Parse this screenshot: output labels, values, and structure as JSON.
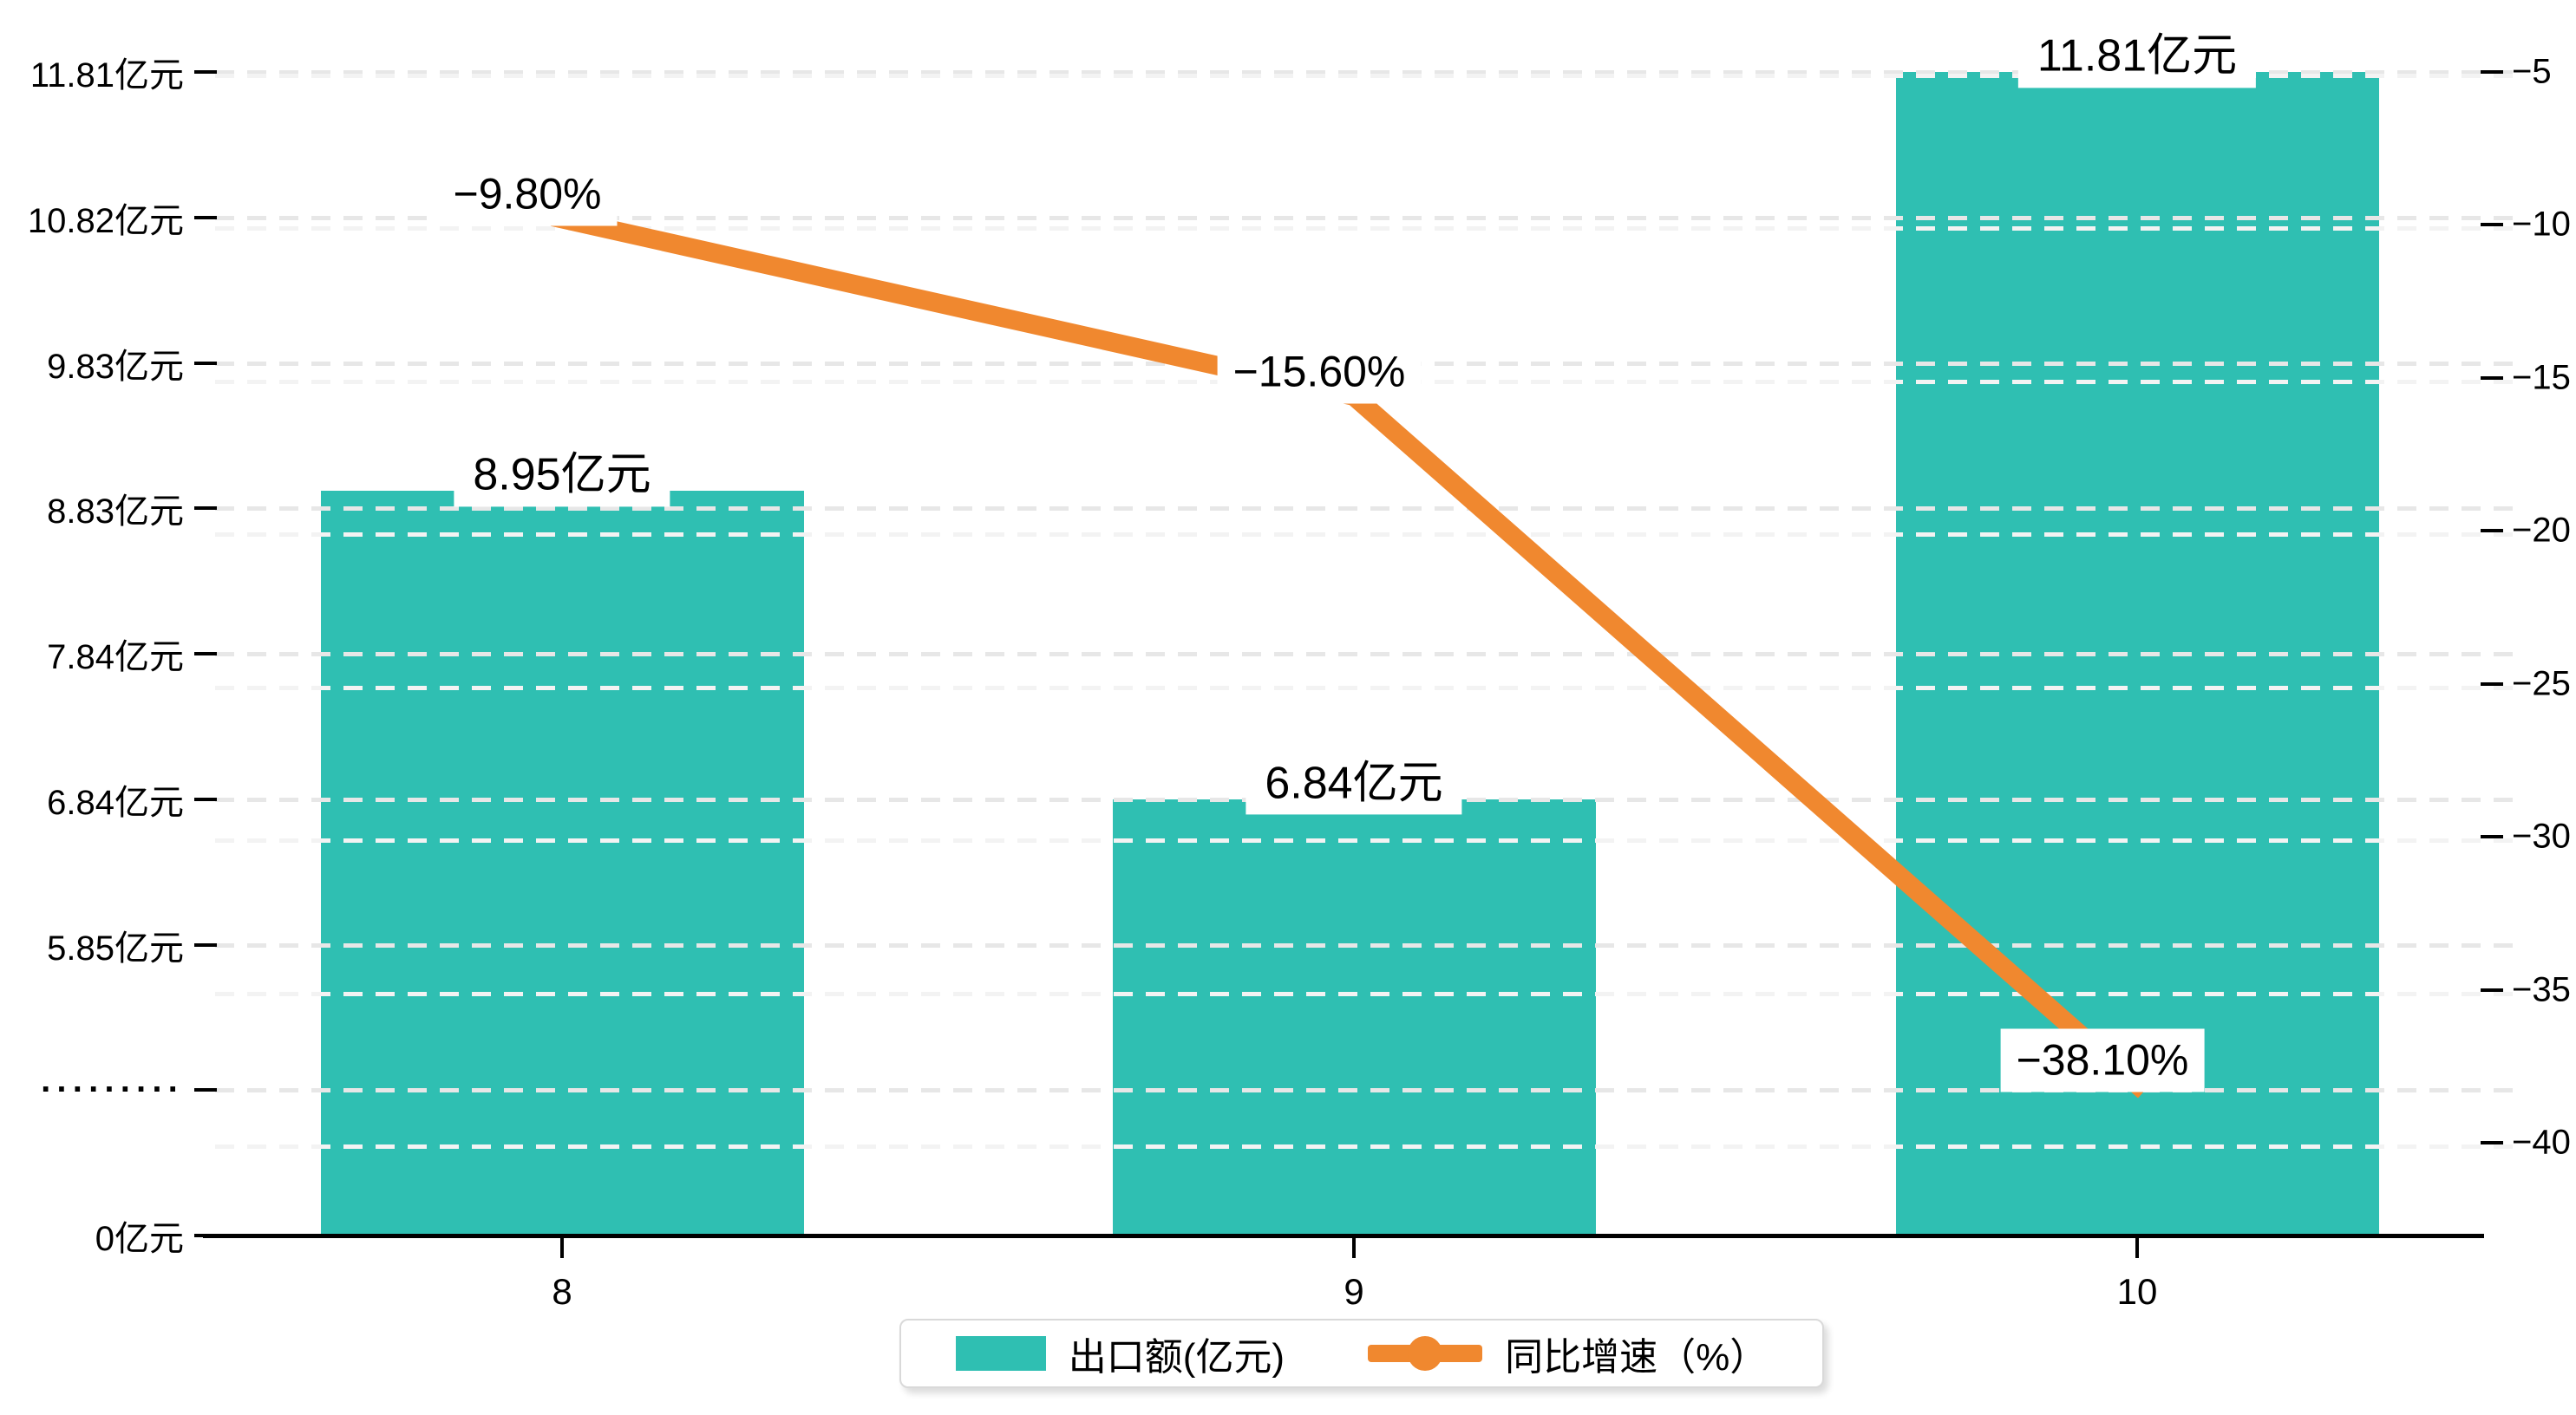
{
  "chart_data": {
    "type": "combo-bar-line",
    "categories": [
      "8",
      "9",
      "10"
    ],
    "series": [
      {
        "name": "出口额(亿元)",
        "type": "bar",
        "color": "#2fbfb2",
        "values": [
          8.95,
          6.84,
          11.81
        ],
        "data_labels": [
          "8.95亿元",
          "6.84亿元",
          "11.81亿元"
        ]
      },
      {
        "name": "同比增速（%）",
        "type": "line",
        "axis": "right",
        "color": "#f0882f",
        "values": [
          -9.8,
          -15.6,
          -38.1
        ],
        "data_labels": [
          "−9.80%",
          "−15.60%",
          "−38.10%"
        ]
      }
    ],
    "left_axis": {
      "tick_labels": [
        "11.81亿元",
        "10.82亿元",
        "9.83亿元",
        "8.83亿元",
        "7.84亿元",
        "6.84亿元",
        "5.85亿元",
        "·········",
        "0亿元"
      ],
      "tick_values": [
        11.81,
        10.82,
        9.83,
        8.83,
        7.84,
        6.84,
        5.85,
        null,
        0
      ],
      "axis_break": true
    },
    "right_axis": {
      "tick_labels": [
        "−5",
        "−10",
        "−15",
        "−20",
        "−25",
        "−30",
        "−35",
        "−40"
      ],
      "tick_values": [
        -5,
        -10,
        -15,
        -20,
        -25,
        -30,
        -35,
        -40
      ],
      "range": [
        -5,
        -40
      ]
    },
    "x_axis": {
      "tick_labels": [
        "8",
        "9",
        "10"
      ]
    },
    "legend": [
      {
        "label": "出口额(亿元)",
        "marker": "bar-swatch",
        "color": "#2fbfb2"
      },
      {
        "label": "同比增速（%）",
        "marker": "line-dot",
        "color": "#f0882f"
      }
    ],
    "grid": {
      "dashed": true,
      "left_grid_color": "#e7e7e7",
      "right_grid_color": "#f3f3f3"
    },
    "title": ""
  }
}
